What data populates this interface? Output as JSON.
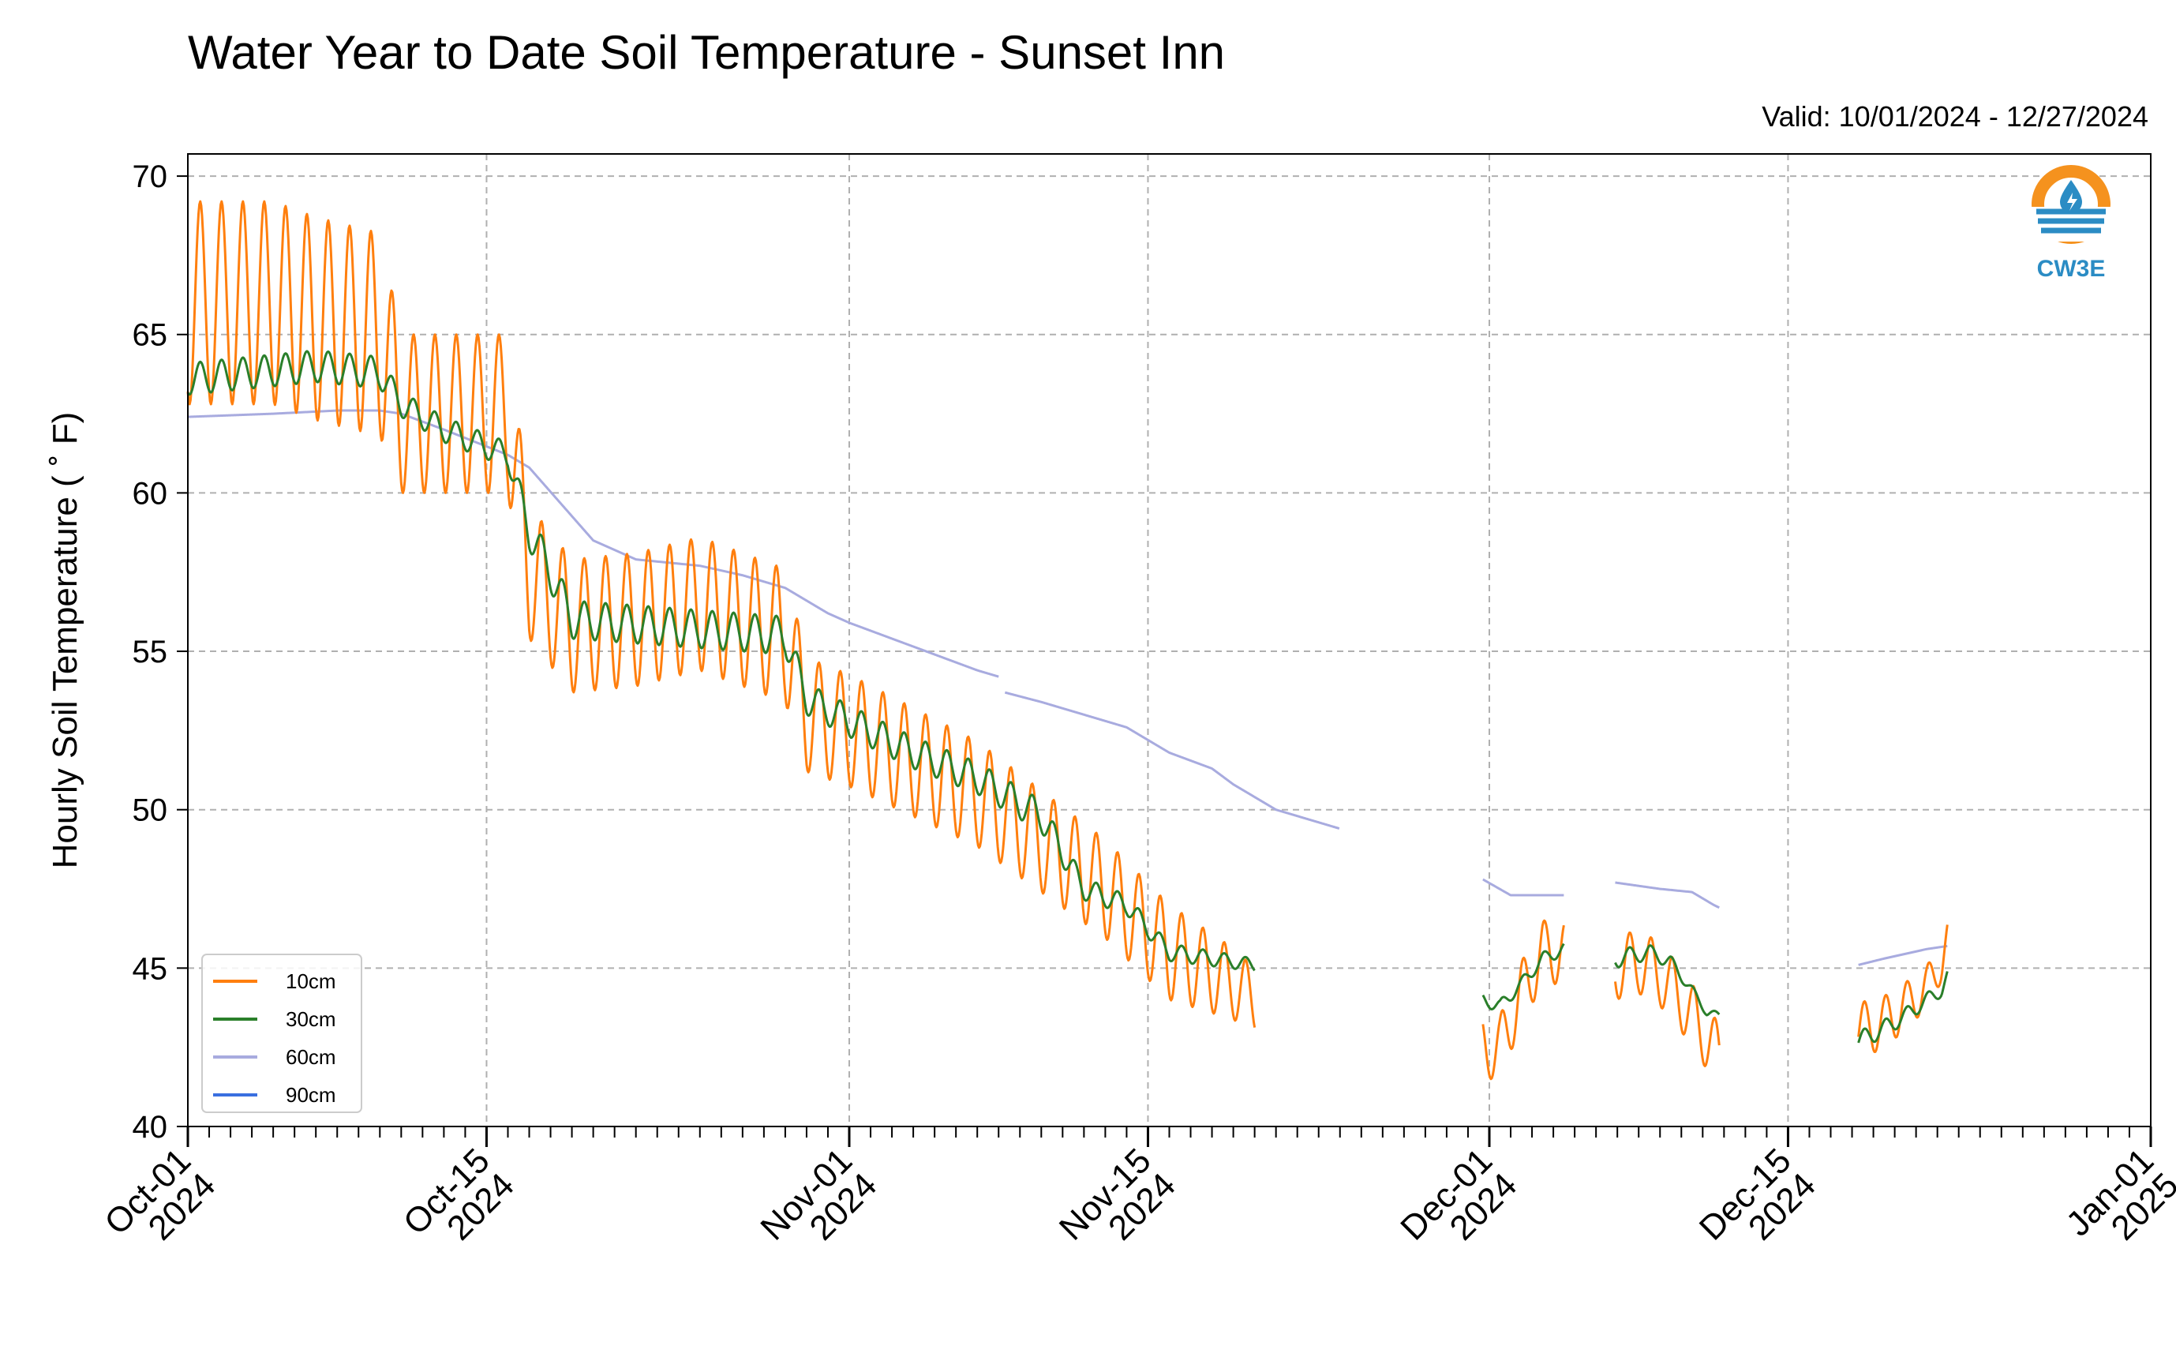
{
  "chart_data": {
    "type": "line",
    "title": "Water Year to Date Soil Temperature - Sunset Inn",
    "subtitle": "Valid: 10/01/2024 - 12/27/2024",
    "ylabel": "Hourly Soil Temperature ( ˚ F)",
    "xlabel": "",
    "ylim": [
      40,
      70.7
    ],
    "xlim": [
      "2024-10-01",
      "2025-01-01"
    ],
    "yticks": [
      40,
      45,
      50,
      55,
      60,
      65,
      70
    ],
    "xticks": [
      {
        "date": "2024-10-01",
        "line1": "Oct-01",
        "line2": "2024"
      },
      {
        "date": "2024-10-15",
        "line1": "Oct-15",
        "line2": "2024"
      },
      {
        "date": "2024-11-01",
        "line1": "Nov-01",
        "line2": "2024"
      },
      {
        "date": "2024-11-15",
        "line1": "Nov-15",
        "line2": "2024"
      },
      {
        "date": "2024-12-01",
        "line1": "Dec-01",
        "line2": "2024"
      },
      {
        "date": "2024-12-15",
        "line1": "Dec-15",
        "line2": "2024"
      },
      {
        "date": "2025-01-01",
        "line1": "Jan-01",
        "line2": "2025"
      }
    ],
    "grid": true,
    "legend_position": "bottom-left",
    "series": [
      {
        "name": "10cm",
        "color": "#ff7f0e",
        "segments": [
          {
            "mean": [
              [
                0,
                66.0
              ],
              [
                4,
                66.0
              ],
              [
                6,
                65.5
              ],
              [
                9,
                65.0
              ],
              [
                10,
                62.5
              ],
              [
                15,
                62.5
              ],
              [
                16,
                57.5
              ],
              [
                18,
                55.8
              ],
              [
                21,
                56.0
              ],
              [
                24,
                56.5
              ],
              [
                28,
                55.5
              ],
              [
                29,
                53.0
              ],
              [
                31,
                52.5
              ],
              [
                34,
                51.5
              ],
              [
                37,
                50.5
              ],
              [
                40,
                49.0
              ],
              [
                43,
                47.5
              ],
              [
                46,
                45.5
              ],
              [
                49,
                44.5
              ],
              [
                50,
                44.0
              ]
            ],
            "amp": [
              [
                0,
                3.2
              ],
              [
                9,
                3.2
              ],
              [
                10,
                2.5
              ],
              [
                15,
                2.5
              ],
              [
                16,
                2.1
              ],
              [
                28,
                2.1
              ],
              [
                29,
                1.8
              ],
              [
                46,
                1.5
              ],
              [
                50,
                1.0
              ]
            ]
          },
          {
            "mean": [
              [
                60.7,
                42.5
              ],
              [
                61.5,
                42.5
              ],
              [
                62.5,
                44.2
              ],
              [
                63.5,
                45.5
              ],
              [
                64.5,
                45.5
              ]
            ],
            "amp": [
              [
                60.7,
                1.0
              ],
              [
                64.5,
                1.0
              ]
            ]
          },
          {
            "mean": [
              [
                66.9,
                45.0
              ],
              [
                68.0,
                45.2
              ],
              [
                69.0,
                44.8
              ],
              [
                70.0,
                44.0
              ],
              [
                71.0,
                43.0
              ],
              [
                71.8,
                42.2
              ]
            ],
            "amp": [
              [
                66.9,
                1.0
              ],
              [
                71.8,
                1.0
              ]
            ]
          },
          {
            "mean": [
              [
                78.3,
                43.0
              ],
              [
                79.5,
                43.3
              ],
              [
                80.5,
                43.8
              ],
              [
                81.5,
                44.4
              ],
              [
                82.2,
                45.2
              ],
              [
                82.5,
                46.0
              ]
            ],
            "amp": [
              [
                78.3,
                0.9
              ],
              [
                82.5,
                0.6
              ]
            ]
          }
        ]
      },
      {
        "name": "30cm",
        "color": "#2a7f2a",
        "segments": [
          {
            "mean": [
              [
                0,
                63.6
              ],
              [
                6,
                64.0
              ],
              [
                9,
                63.8
              ],
              [
                10,
                62.8
              ],
              [
                12,
                62.0
              ],
              [
                15,
                61.2
              ],
              [
                16,
                58.8
              ],
              [
                17,
                57.5
              ],
              [
                18,
                56.0
              ],
              [
                28,
                55.5
              ],
              [
                29,
                53.5
              ],
              [
                31,
                52.8
              ],
              [
                34,
                51.8
              ],
              [
                37,
                51.0
              ],
              [
                40,
                49.8
              ],
              [
                42,
                47.5
              ],
              [
                44,
                47.0
              ],
              [
                46,
                45.5
              ],
              [
                48,
                45.3
              ],
              [
                50,
                45.1
              ]
            ],
            "amp": [
              [
                0,
                0.5
              ],
              [
                9,
                0.5
              ],
              [
                10,
                0.4
              ],
              [
                15,
                0.4
              ],
              [
                16,
                0.6
              ],
              [
                28,
                0.6
              ],
              [
                29,
                0.5
              ],
              [
                40,
                0.5
              ],
              [
                42,
                0.35
              ],
              [
                50,
                0.2
              ]
            ]
          },
          {
            "mean": [
              [
                60.7,
                44.0
              ],
              [
                61.5,
                43.8
              ],
              [
                62.5,
                44.5
              ],
              [
                63.5,
                45.3
              ],
              [
                64.5,
                45.6
              ]
            ],
            "amp": [
              [
                60.7,
                0.2
              ],
              [
                64.5,
                0.2
              ]
            ]
          },
          {
            "mean": [
              [
                66.9,
                45.3
              ],
              [
                68.5,
                45.5
              ],
              [
                69.5,
                45.2
              ],
              [
                70.5,
                44.3
              ],
              [
                71.2,
                43.6
              ],
              [
                71.8,
                43.5
              ]
            ],
            "amp": [
              [
                66.9,
                0.3
              ],
              [
                71.8,
                0.1
              ]
            ]
          },
          {
            "mean": [
              [
                78.3,
                42.7
              ],
              [
                79.5,
                43.1
              ],
              [
                80.5,
                43.5
              ],
              [
                81.5,
                44.0
              ],
              [
                82.2,
                44.3
              ],
              [
                82.5,
                44.8
              ]
            ],
            "amp": [
              [
                78.3,
                0.3
              ],
              [
                82.5,
                0.2
              ]
            ]
          }
        ]
      },
      {
        "name": "60cm",
        "color": "#a8abdf",
        "segments": [
          {
            "mean": [
              [
                0,
                62.4
              ],
              [
                4,
                62.5
              ],
              [
                7,
                62.6
              ],
              [
                9,
                62.6
              ],
              [
                10,
                62.5
              ],
              [
                12,
                62.0
              ],
              [
                15,
                61.2
              ],
              [
                16,
                60.8
              ],
              [
                19,
                58.5
              ],
              [
                21,
                57.9
              ],
              [
                24,
                57.7
              ],
              [
                26,
                57.4
              ],
              [
                28,
                57.0
              ],
              [
                29,
                56.6
              ],
              [
                30,
                56.2
              ],
              [
                31,
                55.9
              ],
              [
                33,
                55.4
              ],
              [
                35,
                54.9
              ],
              [
                37,
                54.4
              ],
              [
                38,
                54.2
              ]
            ],
            "amp": [
              [
                0,
                0
              ],
              [
                38,
                0
              ]
            ]
          },
          {
            "mean": [
              [
                38.3,
                53.7
              ],
              [
                40,
                53.4
              ],
              [
                42,
                53.0
              ],
              [
                44,
                52.6
              ],
              [
                46,
                51.8
              ],
              [
                48,
                51.3
              ],
              [
                49,
                50.8
              ],
              [
                51,
                50.0
              ],
              [
                53,
                49.6
              ],
              [
                54,
                49.4
              ]
            ],
            "amp": [
              [
                38.3,
                0
              ],
              [
                54,
                0
              ]
            ]
          },
          {
            "mean": [
              [
                60.7,
                47.8
              ],
              [
                62,
                47.3
              ],
              [
                64.5,
                47.3
              ]
            ],
            "amp": [
              [
                60.7,
                0
              ],
              [
                64.5,
                0
              ]
            ]
          },
          {
            "mean": [
              [
                66.9,
                47.7
              ],
              [
                69,
                47.5
              ],
              [
                70.5,
                47.4
              ],
              [
                71.5,
                47.0
              ],
              [
                71.8,
                46.9
              ]
            ],
            "amp": [
              [
                66.9,
                0
              ],
              [
                71.8,
                0
              ]
            ]
          },
          {
            "mean": [
              [
                78.3,
                45.1
              ],
              [
                79.5,
                45.3
              ],
              [
                81.5,
                45.6
              ],
              [
                82.5,
                45.7
              ]
            ],
            "amp": [
              [
                78.3,
                0
              ],
              [
                82.5,
                0
              ]
            ]
          }
        ]
      },
      {
        "name": "90cm",
        "color": "#3a6fe0",
        "segments": []
      }
    ]
  },
  "logo": {
    "text": "CW3E",
    "ring_color": "#f5921e",
    "blue_color": "#2b8cc4"
  }
}
